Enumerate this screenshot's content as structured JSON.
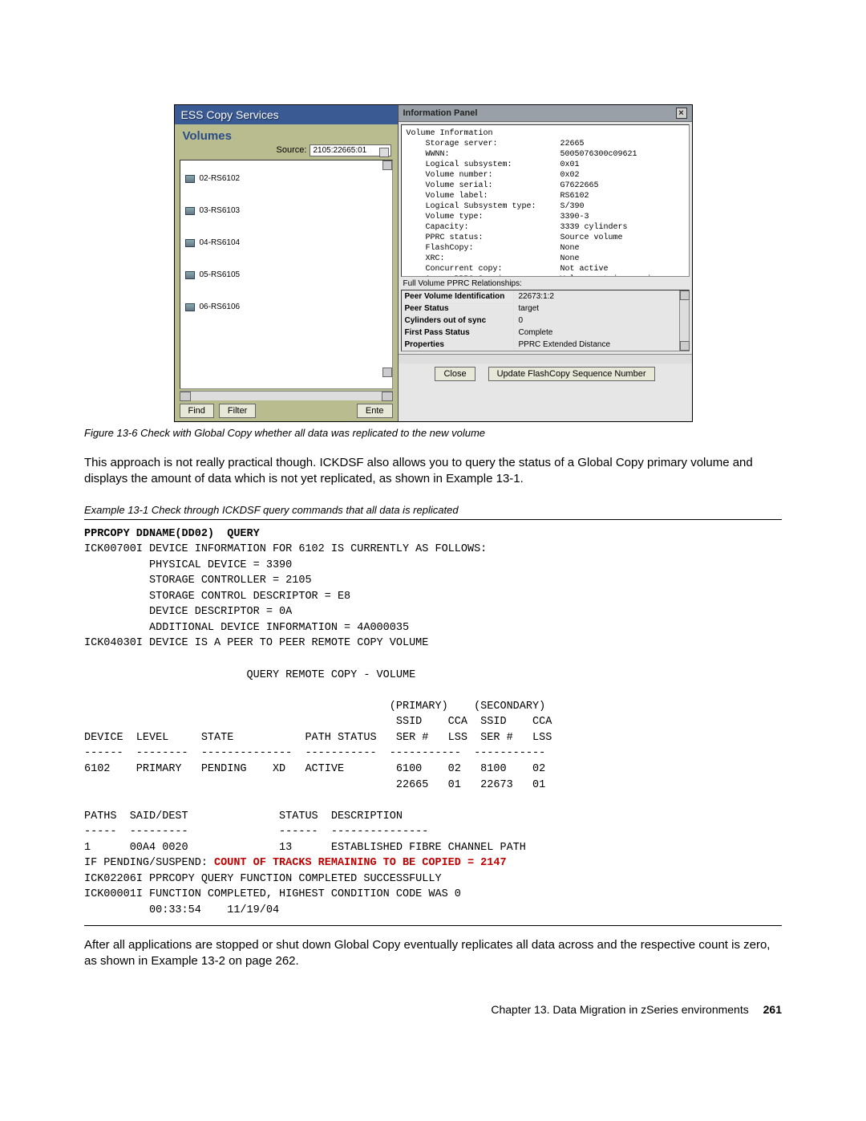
{
  "screenshot": {
    "title": "ESS Copy Services",
    "section": "Volumes",
    "source_label": "Source:",
    "source_value": "2105:22665:01",
    "volumes": [
      {
        "id": "02-RS6102"
      },
      {
        "id": "03-RS6103"
      },
      {
        "id": "04-RS6104"
      },
      {
        "id": "05-RS6105"
      },
      {
        "id": "06-RS6106"
      }
    ],
    "buttons": {
      "find": "Find",
      "filter": "Filter",
      "ente": "Ente"
    },
    "info_panel": {
      "title": "Information Panel",
      "lines": "Volume Information\n    Storage server:             22665\n    WWNN:                       5005076300c09621\n    Logical subsystem:          0x01\n    Volume number:              0x02\n    Volume serial:              G7622665\n    Volume label:               RS6102\n    Logical Subsystem type:     S/390\n    Volume type:                3390-3\n    Capacity:                   3339 cylinders\n    PPRC status:                Source volume\n    FlashCopy:                  None\n    XRC:                        None\n    Concurrent copy:            Not active\n    Async PPRC Session:         Volume not in session",
      "pprc_label": "Full Volume PPRC Relationships:",
      "pprc_rows": [
        {
          "k": "Peer Volume Identification",
          "v": "22673:1:2"
        },
        {
          "k": "Peer Status",
          "v": "target"
        },
        {
          "k": "Cylinders out of sync",
          "v": "0"
        },
        {
          "k": "First Pass Status",
          "v": "Complete"
        },
        {
          "k": "Properties",
          "v": "PPRC Extended Distance"
        }
      ],
      "close": "Close",
      "update": "Update FlashCopy Sequence Number"
    }
  },
  "figure_caption": "Figure 13-6   Check with Global Copy whether all data was replicated to the new volume",
  "body_para_1": "This approach is not really practical though. ICKDSF also allows you to query the status of a Global Copy primary volume and displays the amount of data which is not yet replicated, as shown in Example 13-1.",
  "example_caption": "Example 13-1   Check through ICKDSF query commands that all data is replicated",
  "code": {
    "line1_bold": "PPRCOPY DDNAME(DD02)  QUERY",
    "block1": "ICK00700I DEVICE INFORMATION FOR 6102 IS CURRENTLY AS FOLLOWS:\n          PHYSICAL DEVICE = 3390\n          STORAGE CONTROLLER = 2105\n          STORAGE CONTROL DESCRIPTOR = E8\n          DEVICE DESCRIPTOR = 0A\n          ADDITIONAL DEVICE INFORMATION = 4A000035\nICK04030I DEVICE IS A PEER TO PEER REMOTE COPY VOLUME\n\n                         QUERY REMOTE COPY - VOLUME\n\n                                               (PRIMARY)    (SECONDARY)\n                                                SSID    CCA  SSID    CCA\nDEVICE  LEVEL     STATE           PATH STATUS   SER #   LSS  SER #   LSS\n------  --------  --------------  -----------  -----------  -----------\n6102    PRIMARY   PENDING    XD   ACTIVE        6100    02   8100    02\n                                                22665   01   22673   01\n\nPATHS  SAID/DEST              STATUS  DESCRIPTION\n-----  ---------              ------  ---------------\n1      00A4 0020              13      ESTABLISHED FIBRE CHANNEL PATH",
    "pending_prefix": "IF PENDING/SUSPEND: ",
    "pending_red": "COUNT OF TRACKS REMAINING TO BE COPIED = 2147",
    "block2": "\nICK02206I PPRCOPY QUERY FUNCTION COMPLETED SUCCESSFULLY\nICK00001I FUNCTION COMPLETED, HIGHEST CONDITION CODE WAS 0\n          00:33:54    11/19/04"
  },
  "body_para_2": "After all applications are stopped or shut down Global Copy eventually replicates all data across and the respective count is zero, as shown in Example 13-2 on page 262.",
  "footer": {
    "chapter": "Chapter 13. Data Migration in zSeries environments",
    "page": "261"
  }
}
